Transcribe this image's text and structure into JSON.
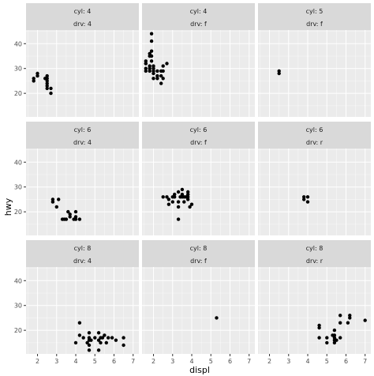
{
  "chart_data": {
    "type": "scatter",
    "title": "",
    "xlabel": "displ",
    "ylabel": "hwy",
    "xlim": [
      1.4,
      7.3
    ],
    "ylim": [
      10.5,
      45.5
    ],
    "x_ticks": [
      2,
      3,
      4,
      5,
      6,
      7
    ],
    "y_ticks": [
      20,
      30,
      40
    ],
    "grid": true,
    "legend": "none",
    "point_color": "#000000",
    "panel_background": "#ebebeb",
    "strip_background": "#d9d9d9",
    "facets": [
      {
        "cyl": "cyl: 4",
        "drv": "drv: 4",
        "points": [
          [
            1.8,
            26
          ],
          [
            1.8,
            25
          ],
          [
            2.0,
            28
          ],
          [
            2.0,
            27
          ],
          [
            2.4,
            26
          ],
          [
            2.5,
            27
          ],
          [
            2.5,
            25
          ],
          [
            2.5,
            24
          ],
          [
            2.5,
            23
          ],
          [
            2.5,
            22
          ],
          [
            2.5,
            26
          ],
          [
            2.7,
            22
          ],
          [
            2.7,
            20
          ]
        ]
      },
      {
        "cyl": "cyl: 4",
        "drv": "drv: f",
        "points": [
          [
            1.6,
            33
          ],
          [
            1.6,
            32
          ],
          [
            1.6,
            32
          ],
          [
            1.6,
            29
          ],
          [
            1.6,
            30
          ],
          [
            1.8,
            29
          ],
          [
            1.8,
            36
          ],
          [
            1.8,
            35
          ],
          [
            1.8,
            31
          ],
          [
            1.8,
            30
          ],
          [
            1.9,
            44
          ],
          [
            1.9,
            41
          ],
          [
            1.9,
            37
          ],
          [
            1.9,
            35
          ],
          [
            1.9,
            33
          ],
          [
            2.0,
            31
          ],
          [
            2.0,
            29
          ],
          [
            2.0,
            26
          ],
          [
            2.0,
            28
          ],
          [
            2.0,
            30
          ],
          [
            2.2,
            26
          ],
          [
            2.2,
            27
          ],
          [
            2.2,
            29
          ],
          [
            2.4,
            27
          ],
          [
            2.4,
            24
          ],
          [
            2.4,
            29
          ],
          [
            2.5,
            26
          ],
          [
            2.5,
            29
          ],
          [
            2.5,
            31
          ],
          [
            2.7,
            32
          ]
        ]
      },
      {
        "cyl": "cyl: 5",
        "drv": "drv: f",
        "points": [
          [
            2.5,
            28
          ],
          [
            2.5,
            29
          ]
        ]
      },
      {
        "cyl": "cyl: 6",
        "drv": "drv: 4",
        "points": [
          [
            2.8,
            25
          ],
          [
            2.8,
            24
          ],
          [
            3.1,
            25
          ],
          [
            3.0,
            22
          ],
          [
            3.3,
            17
          ],
          [
            3.4,
            17
          ],
          [
            3.5,
            17
          ],
          [
            3.6,
            20
          ],
          [
            3.7,
            19
          ],
          [
            3.7,
            18
          ],
          [
            3.9,
            17
          ],
          [
            4.0,
            18
          ],
          [
            4.0,
            20
          ],
          [
            4.0,
            17
          ],
          [
            4.2,
            17
          ]
        ]
      },
      {
        "cyl": "cyl: 6",
        "drv": "drv: f",
        "points": [
          [
            2.5,
            26
          ],
          [
            2.7,
            26
          ],
          [
            2.8,
            25
          ],
          [
            2.8,
            23
          ],
          [
            3.0,
            24
          ],
          [
            3.0,
            26
          ],
          [
            3.1,
            26
          ],
          [
            3.1,
            27
          ],
          [
            3.3,
            24
          ],
          [
            3.3,
            22
          ],
          [
            3.3,
            28
          ],
          [
            3.4,
            26
          ],
          [
            3.5,
            26
          ],
          [
            3.5,
            29
          ],
          [
            3.6,
            24
          ],
          [
            3.6,
            26
          ],
          [
            3.7,
            26
          ],
          [
            3.8,
            25
          ],
          [
            3.8,
            27
          ],
          [
            3.8,
            28
          ],
          [
            3.9,
            22
          ],
          [
            4.0,
            23
          ],
          [
            3.3,
            17
          ],
          [
            3.5,
            27
          ],
          [
            3.8,
            26
          ]
        ]
      },
      {
        "cyl": "cyl: 6",
        "drv": "drv: r",
        "points": [
          [
            3.8,
            25
          ],
          [
            3.8,
            26
          ],
          [
            4.0,
            24
          ],
          [
            4.0,
            26
          ]
        ]
      },
      {
        "cyl": "cyl: 8",
        "drv": "drv: 4",
        "points": [
          [
            4.0,
            15
          ],
          [
            4.2,
            23
          ],
          [
            4.2,
            18
          ],
          [
            4.4,
            17
          ],
          [
            4.6,
            15
          ],
          [
            4.7,
            17
          ],
          [
            4.7,
            19
          ],
          [
            4.7,
            16
          ],
          [
            4.7,
            14
          ],
          [
            4.7,
            12
          ],
          [
            4.8,
            16
          ],
          [
            5.0,
            17
          ],
          [
            5.2,
            19
          ],
          [
            5.2,
            16
          ],
          [
            5.2,
            12
          ],
          [
            5.3,
            15
          ],
          [
            5.3,
            17
          ],
          [
            5.4,
            17
          ],
          [
            5.5,
            18
          ],
          [
            5.6,
            15
          ],
          [
            5.7,
            17
          ],
          [
            5.9,
            17
          ],
          [
            6.1,
            16
          ],
          [
            6.5,
            14
          ],
          [
            6.5,
            17
          ]
        ]
      },
      {
        "cyl": "cyl: 8",
        "drv": "drv: f",
        "points": [
          [
            5.3,
            25
          ]
        ]
      },
      {
        "cyl": "cyl: 8",
        "drv": "drv: r",
        "points": [
          [
            4.6,
            21
          ],
          [
            4.6,
            22
          ],
          [
            4.6,
            17
          ],
          [
            5.0,
            15
          ],
          [
            5.0,
            17
          ],
          [
            5.3,
            18
          ],
          [
            5.4,
            16
          ],
          [
            5.4,
            15
          ],
          [
            5.4,
            17
          ],
          [
            5.4,
            20
          ],
          [
            5.4,
            18
          ],
          [
            5.5,
            16
          ],
          [
            5.7,
            23
          ],
          [
            5.7,
            26
          ],
          [
            5.7,
            17
          ],
          [
            6.1,
            23
          ],
          [
            6.2,
            25
          ],
          [
            6.2,
            26
          ],
          [
            7.0,
            24
          ]
        ]
      }
    ]
  }
}
